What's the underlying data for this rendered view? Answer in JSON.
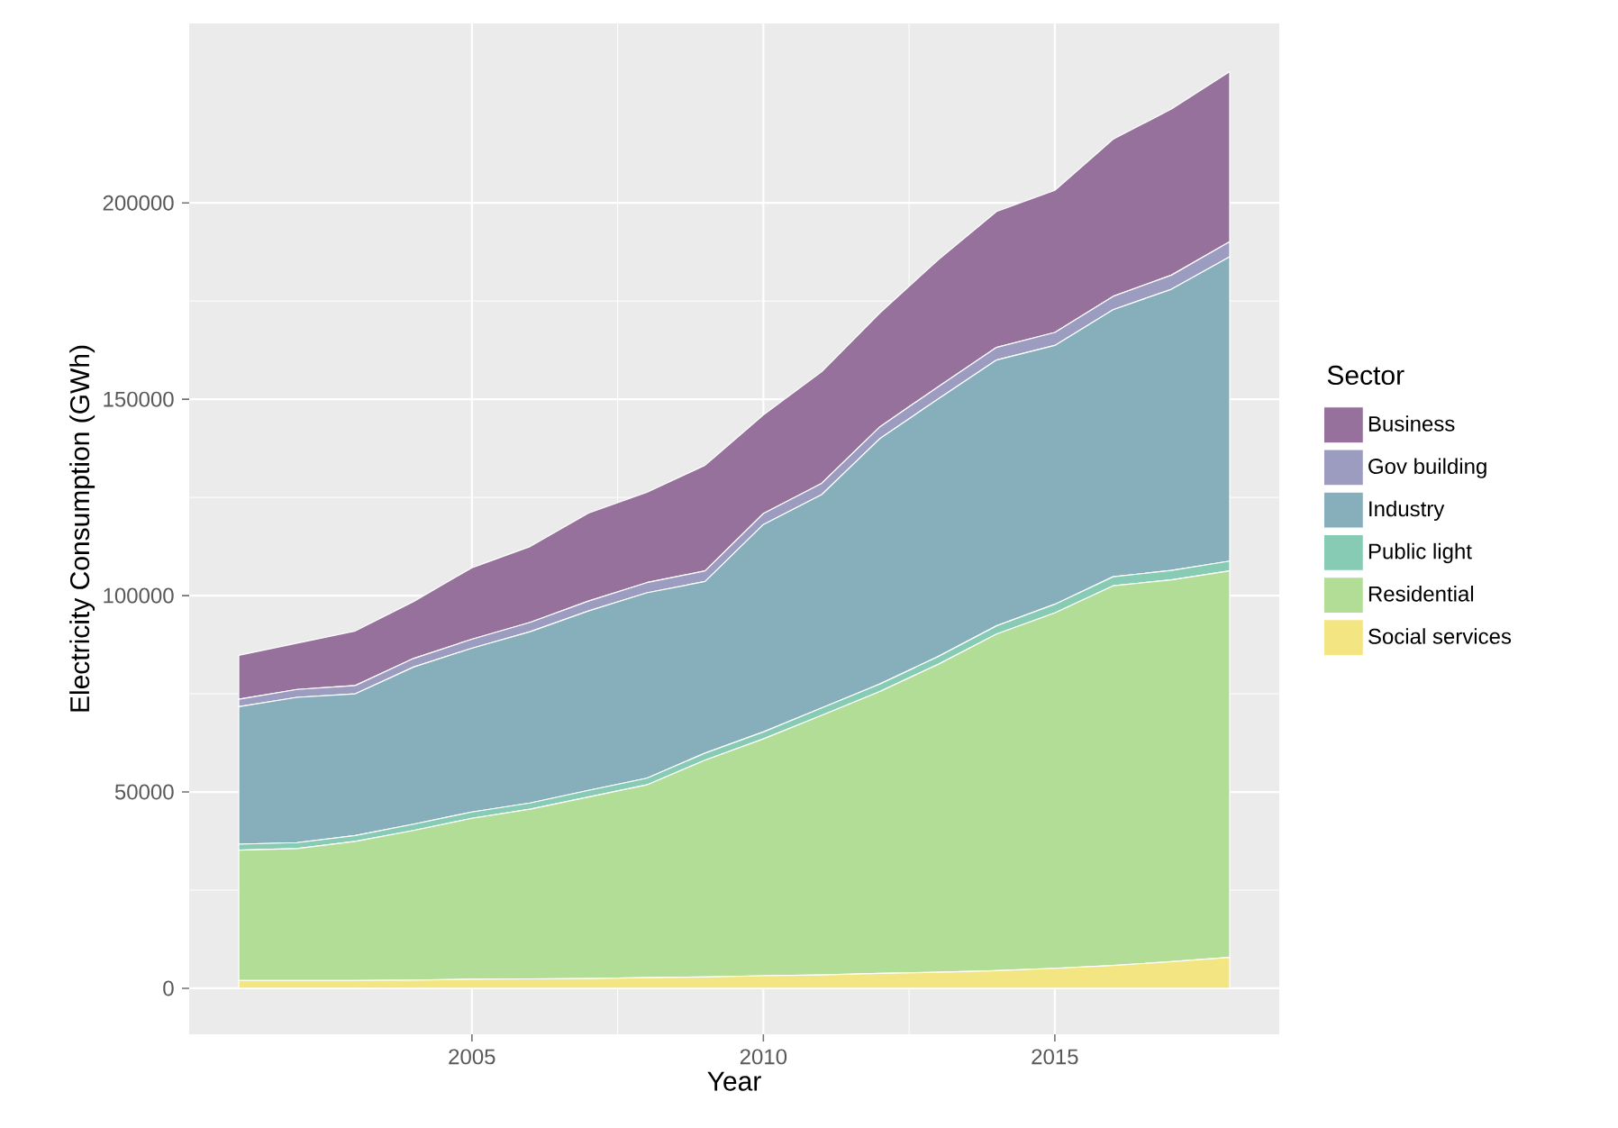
{
  "chart_data": {
    "type": "area",
    "stacked": true,
    "xlabel": "Year",
    "ylabel": "Electricity Consumption (GWh)",
    "legend_title": "Sector",
    "legend": "right",
    "grid": true,
    "x": [
      2001,
      2002,
      2003,
      2004,
      2005,
      2006,
      2007,
      2008,
      2009,
      2010,
      2011,
      2012,
      2013,
      2014,
      2015,
      2016,
      2017,
      2018
    ],
    "xlim": [
      2000.15,
      2018.85
    ],
    "xticks": [
      2005,
      2010,
      2015
    ],
    "ylim": [
      -11700,
      245700
    ],
    "yticks": [
      0,
      50000,
      100000,
      150000,
      200000
    ],
    "series": [
      {
        "name": "Social services",
        "color": "#f3e581",
        "values": [
          2000,
          2000,
          2000,
          2100,
          2300,
          2400,
          2500,
          2700,
          2900,
          3200,
          3400,
          3800,
          4100,
          4500,
          5100,
          5800,
          6800,
          7900
        ]
      },
      {
        "name": "Residential",
        "color": "#b2dd97",
        "values": [
          33200,
          33600,
          35400,
          38100,
          41000,
          43200,
          46200,
          49100,
          55200,
          60300,
          66100,
          71800,
          78400,
          85700,
          90500,
          96700,
          97200,
          98400
        ]
      },
      {
        "name": "Public light",
        "color": "#87cbb5",
        "values": [
          1500,
          1500,
          1500,
          1600,
          1600,
          1600,
          1700,
          1700,
          1800,
          1800,
          1900,
          1900,
          2000,
          2100,
          2200,
          2300,
          2400,
          2500
        ]
      },
      {
        "name": "Industry",
        "color": "#86aebb",
        "values": [
          35000,
          37000,
          36100,
          40000,
          41700,
          43600,
          45700,
          47200,
          43700,
          52800,
          54300,
          62500,
          65600,
          67700,
          65900,
          68000,
          71600,
          77500
        ]
      },
      {
        "name": "Gov building",
        "color": "#9c9cc0",
        "values": [
          1900,
          2000,
          2100,
          2200,
          2300,
          2400,
          2500,
          2600,
          2700,
          2800,
          2900,
          3000,
          3100,
          3200,
          3300,
          3400,
          3600,
          3800
        ]
      },
      {
        "name": "Business",
        "color": "#96719b",
        "values": [
          11200,
          11800,
          13900,
          14500,
          18200,
          19300,
          22400,
          23000,
          26900,
          25100,
          28400,
          29000,
          32300,
          34600,
          36200,
          40000,
          42300,
          43300
        ]
      }
    ]
  }
}
